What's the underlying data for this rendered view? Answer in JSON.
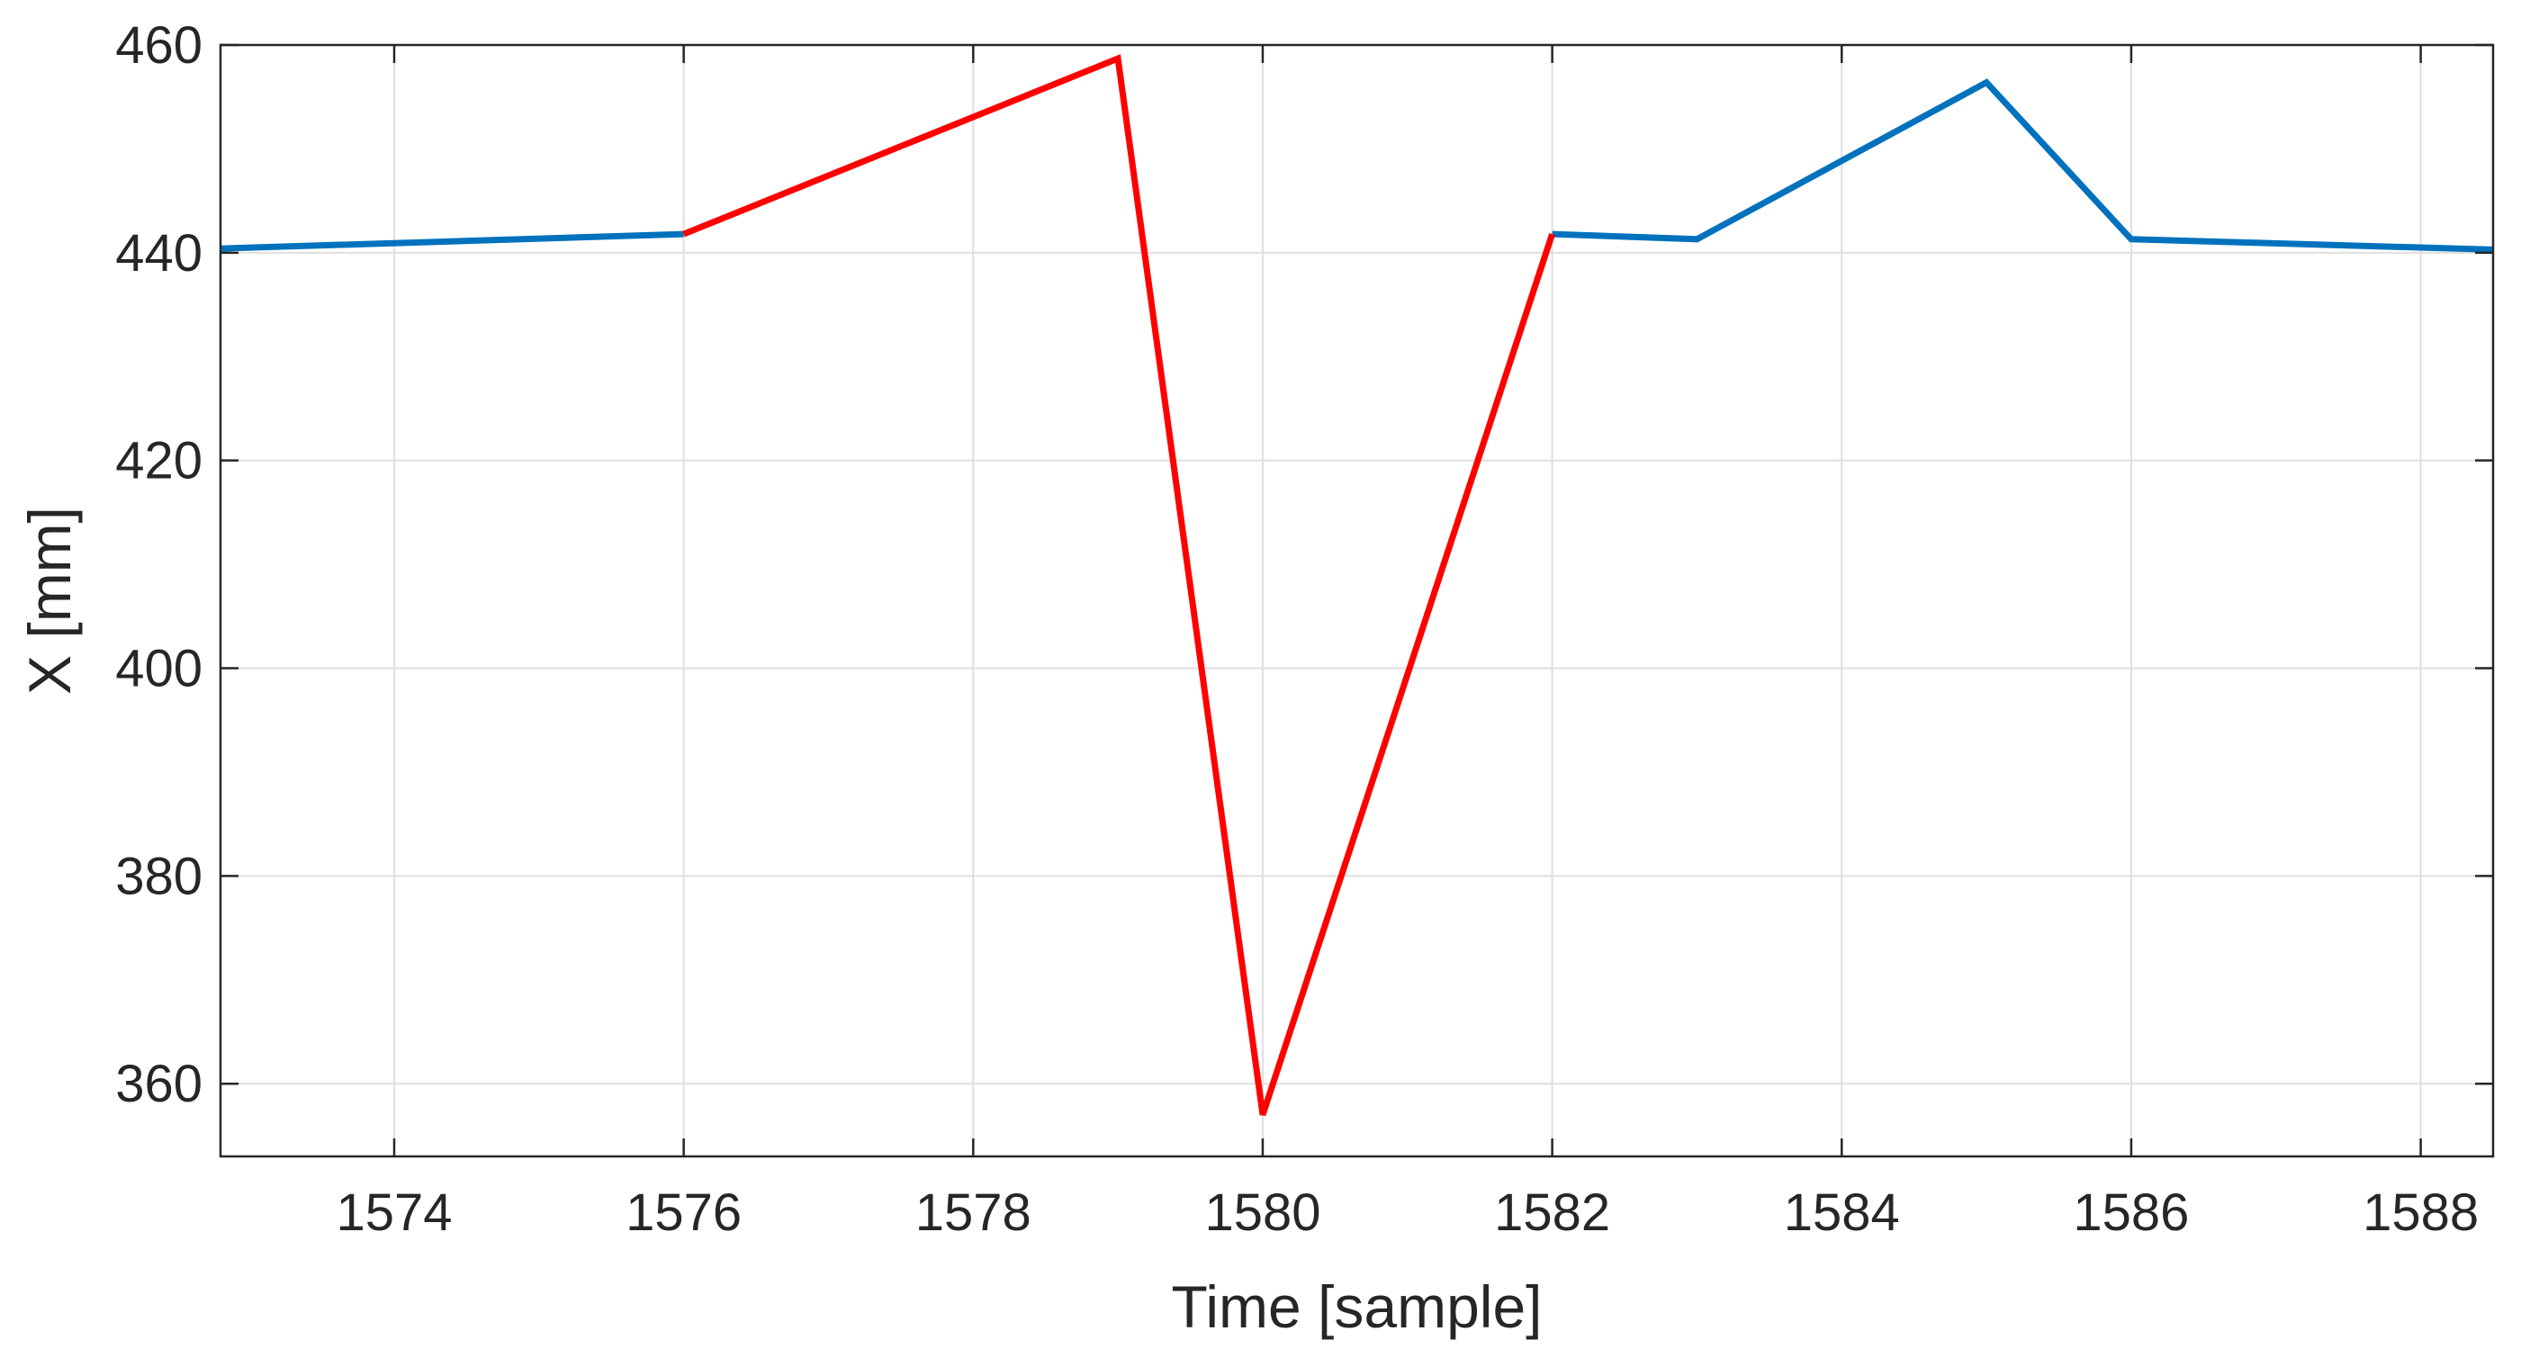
{
  "chart_data": {
    "type": "line",
    "title": "",
    "xlabel": "Time [sample]",
    "ylabel": "X [mm]",
    "xlim": [
      1572.8,
      1588.5
    ],
    "ylim": [
      353,
      460
    ],
    "xticks": [
      1574,
      1576,
      1578,
      1580,
      1582,
      1584,
      1586,
      1588
    ],
    "yticks": [
      360,
      380,
      400,
      420,
      440,
      460
    ],
    "grid": true,
    "legend": "none",
    "series": [
      {
        "color": "#0072BD",
        "segments": [
          {
            "x": [
              1572.8,
              1576
            ],
            "y": [
              440.4,
              441.8
            ]
          },
          {
            "x": [
              1582,
              1583,
              1585,
              1586,
              1588.5
            ],
            "y": [
              441.8,
              441.3,
              456.4,
              441.3,
              440.3
            ]
          }
        ]
      },
      {
        "color": "#FF0000",
        "segments": [
          {
            "x": [
              1576,
              1579,
              1580,
              1582
            ],
            "y": [
              441.8,
              458.7,
              357.0,
              441.8
            ]
          }
        ]
      }
    ]
  }
}
